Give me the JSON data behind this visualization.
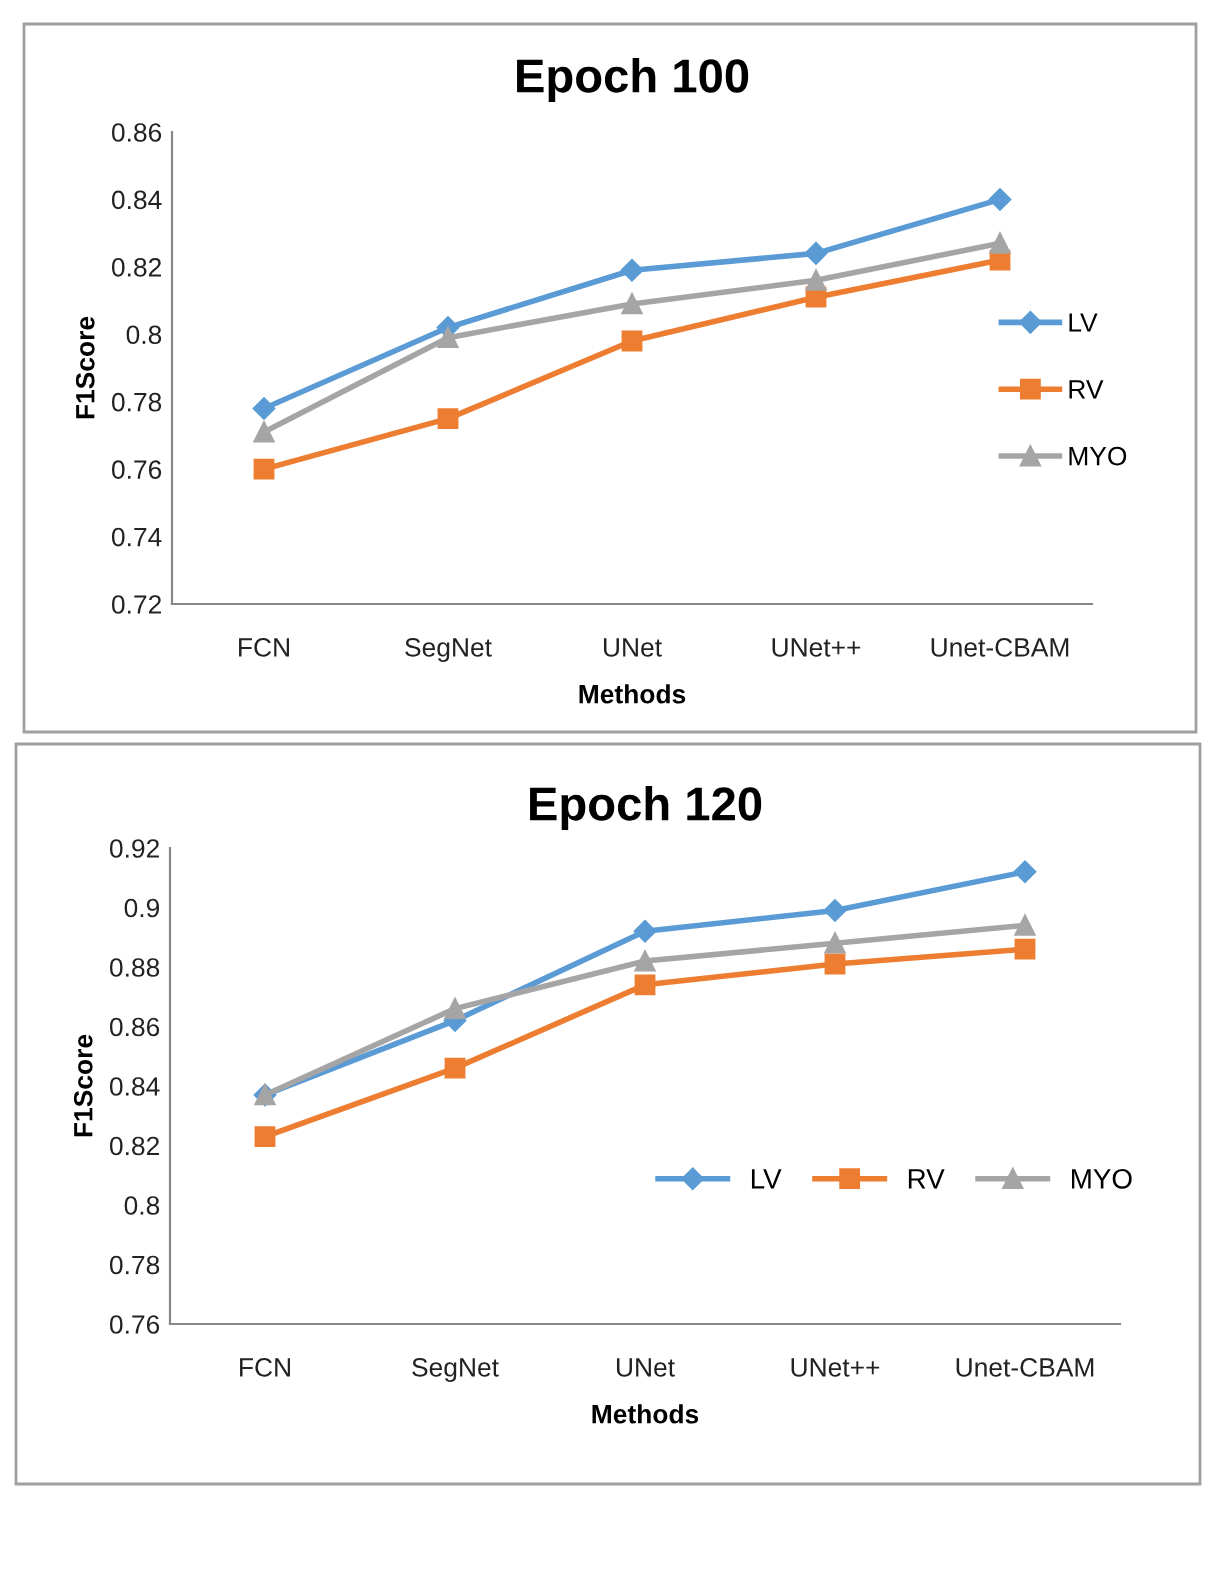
{
  "chart_data": [
    {
      "type": "line",
      "title": "Epoch 100",
      "xlabel": "Methods",
      "ylabel": "F1Score",
      "categories": [
        "FCN",
        "SegNet",
        "UNet",
        "UNet++",
        "Unet-CBAM"
      ],
      "ylim": [
        0.72,
        0.86
      ],
      "yticks": [
        0.72,
        0.74,
        0.76,
        0.78,
        0.8,
        0.82,
        0.84,
        0.86
      ],
      "grid": false,
      "legend": "right",
      "series": [
        {
          "name": "LV",
          "color": "#5b9bd5",
          "marker": "diamond",
          "values": [
            0.778,
            0.802,
            0.819,
            0.824,
            0.84
          ]
        },
        {
          "name": "RV",
          "color": "#ed7d31",
          "marker": "square",
          "values": [
            0.76,
            0.775,
            0.798,
            0.811,
            0.822
          ]
        },
        {
          "name": "MYO",
          "color": "#a5a5a5",
          "marker": "triangle",
          "values": [
            0.771,
            0.799,
            0.809,
            0.816,
            0.827
          ]
        }
      ]
    },
    {
      "type": "line",
      "title": "Epoch 120",
      "xlabel": "Methods",
      "ylabel": "F1Score",
      "categories": [
        "FCN",
        "SegNet",
        "UNet",
        "UNet++",
        "Unet-CBAM"
      ],
      "ylim": [
        0.76,
        0.92
      ],
      "yticks": [
        0.76,
        0.78,
        0.8,
        0.82,
        0.84,
        0.86,
        0.88,
        0.9,
        0.92
      ],
      "grid": false,
      "legend": "center right",
      "series": [
        {
          "name": "LV",
          "color": "#5b9bd5",
          "marker": "diamond",
          "values": [
            0.837,
            0.862,
            0.892,
            0.899,
            0.912
          ]
        },
        {
          "name": "RV",
          "color": "#ed7d31",
          "marker": "square",
          "values": [
            0.823,
            0.846,
            0.874,
            0.881,
            0.886
          ]
        },
        {
          "name": "MYO",
          "color": "#a5a5a5",
          "marker": "triangle",
          "values": [
            0.837,
            0.866,
            0.882,
            0.888,
            0.894
          ]
        }
      ]
    }
  ]
}
